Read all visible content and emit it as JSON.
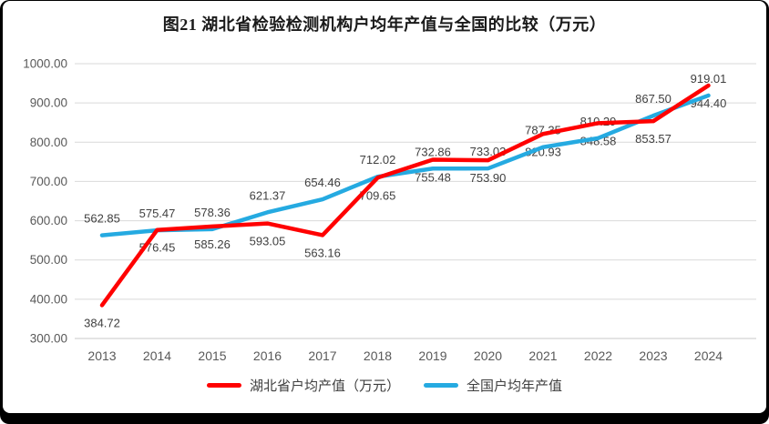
{
  "chart_data": {
    "type": "line",
    "title": "图21  湖北省检验检测机构户均年产值与全国的比较（万元）",
    "categories": [
      "2013",
      "2014",
      "2015",
      "2016",
      "2017",
      "2018",
      "2019",
      "2020",
      "2021",
      "2022",
      "2023",
      "2024"
    ],
    "series": [
      {
        "name": "湖北省户均产值（万元）",
        "color": "#FF0000",
        "label_position": "below",
        "values": [
          384.72,
          576.45,
          585.26,
          593.05,
          563.16,
          709.65,
          755.48,
          753.9,
          820.93,
          848.58,
          853.57,
          944.4
        ]
      },
      {
        "name": "全国户均年产值",
        "color": "#25AAE1",
        "label_position": "above",
        "values": [
          562.85,
          575.47,
          578.36,
          621.37,
          654.46,
          712.02,
          732.86,
          733.03,
          787.35,
          810.29,
          867.5,
          919.01
        ]
      }
    ],
    "xlabel": "",
    "ylabel": "",
    "ylim": [
      300,
      1000
    ],
    "ytick_step": 100,
    "ytick_format_decimals": 2,
    "grid": true,
    "data_labels": true,
    "legend_position": "bottom"
  },
  "styles": {
    "gridline_color": "#D9D9D9",
    "axis_line_color": "#C9C9C9",
    "axis_text_color": "#595959",
    "data_label_color": "#404040",
    "title_color": "#1A1A1A",
    "legend_text_color": "#3F3F3F",
    "frame_color": "#000000",
    "background_color": "#FFFFFF"
  }
}
